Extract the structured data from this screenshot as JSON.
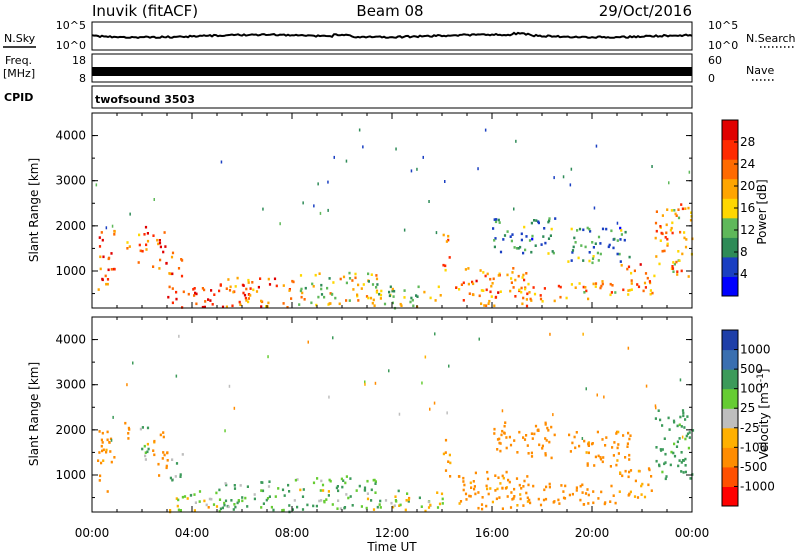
{
  "header": {
    "station": "Inuvik (fitACF)",
    "beam": "Beam 08",
    "date": "29/Oct/2016"
  },
  "top_panels": {
    "nsky_label": "N.Sky",
    "nsky_ticks": [
      "10^5",
      "10^0"
    ],
    "nsearch_label": "N.Search",
    "nsearch_ticks": [
      "10^5",
      "10^0"
    ],
    "freq_label_1": "Freq.",
    "freq_label_2": "[MHz]",
    "freq_ticks": [
      "18",
      "8"
    ],
    "nave_label": "Nave",
    "nave_ticks": [
      "60",
      "0"
    ],
    "cpid_label": "CPID",
    "cpid_text": "twofsound 3503"
  },
  "colors": {
    "power_scale": [
      "#0000ff",
      "#1a3fc2",
      "#2e8b57",
      "#5fb85a",
      "#ffd700",
      "#ffa500",
      "#ff6a00",
      "#ff2a00",
      "#e00000"
    ],
    "velocity_scale": [
      "#ff0000",
      "#ff5000",
      "#ff8c00",
      "#ffb000",
      "#bebebe",
      "#66cc33",
      "#3c9a5a",
      "#3a6fb0",
      "#1f3fa8"
    ]
  },
  "chart_data": [
    {
      "type": "heatmap",
      "name": "power",
      "ylabel": "Slant Range [km]",
      "yticks": [
        "4000",
        "3000",
        "2000",
        "1000"
      ],
      "ylim": [
        180,
        4500
      ],
      "xlim": [
        0,
        24
      ],
      "colorbar_label": "Power [dB]",
      "colorbar_ticks": [
        "28",
        "24",
        "20",
        "16",
        "12",
        "8",
        "4"
      ],
      "colorbar_range": [
        0,
        32
      ],
      "blobs": [
        {
          "t0": 0.2,
          "t1": 0.9,
          "r0": 600,
          "r1": 2000,
          "v": 26
        },
        {
          "t0": 1.2,
          "t1": 1.5,
          "r0": 1500,
          "r1": 1900,
          "v": 20
        },
        {
          "t0": 1.8,
          "t1": 2.3,
          "r0": 1200,
          "r1": 2100,
          "v": 24
        },
        {
          "t0": 2.4,
          "t1": 3.0,
          "r0": 1000,
          "r1": 1900,
          "v": 26
        },
        {
          "t0": 3.0,
          "t1": 3.6,
          "r0": 900,
          "r1": 1500,
          "v": 24
        },
        {
          "t0": 3.0,
          "t1": 5.0,
          "r0": 200,
          "r1": 700,
          "v": 28
        },
        {
          "t0": 5.0,
          "t1": 8.0,
          "r0": 200,
          "r1": 900,
          "v": 24
        },
        {
          "t0": 8.0,
          "t1": 11.5,
          "r0": 250,
          "r1": 1000,
          "v": 16
        },
        {
          "t0": 11.5,
          "t1": 14.0,
          "r0": 200,
          "r1": 700,
          "v": 14
        },
        {
          "t0": 14.0,
          "t1": 14.3,
          "r0": 1000,
          "r1": 2000,
          "v": 22
        },
        {
          "t0": 14.5,
          "t1": 17.5,
          "r0": 250,
          "r1": 1100,
          "v": 22
        },
        {
          "t0": 16.0,
          "t1": 18.5,
          "r0": 1400,
          "r1": 2200,
          "v": 8
        },
        {
          "t0": 17.0,
          "t1": 19.0,
          "r0": 350,
          "r1": 700,
          "v": 22
        },
        {
          "t0": 19.0,
          "t1": 21.0,
          "r0": 400,
          "r1": 800,
          "v": 20
        },
        {
          "t0": 19.0,
          "t1": 21.5,
          "r0": 1200,
          "r1": 2000,
          "v": 10
        },
        {
          "t0": 21.0,
          "t1": 22.5,
          "r0": 500,
          "r1": 1200,
          "v": 22
        },
        {
          "t0": 22.5,
          "t1": 24.0,
          "r0": 900,
          "r1": 2500,
          "v": 20
        }
      ]
    },
    {
      "type": "heatmap",
      "name": "velocity",
      "ylabel": "Slant Range [km]",
      "yticks": [
        "4000",
        "3000",
        "2000",
        "1000"
      ],
      "ylim": [
        180,
        4500
      ],
      "xlim": [
        0,
        24
      ],
      "xticks": [
        "00:00",
        "04:00",
        "08:00",
        "12:00",
        "16:00",
        "20:00",
        "00:00"
      ],
      "xlabel": "Time UT",
      "colorbar_label": "Velocity [m s^-1]",
      "colorbar_ticks": [
        "1000",
        "500",
        "100",
        "25",
        "-25",
        "-100",
        "-500",
        "-1000"
      ],
      "blobs": [
        {
          "t0": 0.2,
          "t1": 0.9,
          "r0": 600,
          "r1": 2000,
          "v": -200
        },
        {
          "t0": 1.2,
          "t1": 1.5,
          "r0": 1500,
          "r1": 2200,
          "v": -300
        },
        {
          "t0": 1.8,
          "t1": 2.3,
          "r0": 1200,
          "r1": 2100,
          "v": 80
        },
        {
          "t0": 2.4,
          "t1": 3.0,
          "r0": 1000,
          "r1": 2100,
          "v": -150
        },
        {
          "t0": 3.0,
          "t1": 3.6,
          "r0": 900,
          "r1": 1500,
          "v": 60
        },
        {
          "t0": 3.0,
          "t1": 5.0,
          "r0": 200,
          "r1": 700,
          "v": 10
        },
        {
          "t0": 5.0,
          "t1": 8.0,
          "r0": 200,
          "r1": 900,
          "v": 120
        },
        {
          "t0": 8.0,
          "t1": 11.5,
          "r0": 250,
          "r1": 1000,
          "v": 80
        },
        {
          "t0": 11.5,
          "t1": 14.0,
          "r0": 200,
          "r1": 700,
          "v": 5
        },
        {
          "t0": 14.0,
          "t1": 14.3,
          "r0": 1000,
          "r1": 2000,
          "v": -120
        },
        {
          "t0": 14.5,
          "t1": 17.5,
          "r0": 250,
          "r1": 1100,
          "v": -180
        },
        {
          "t0": 16.0,
          "t1": 18.5,
          "r0": 1400,
          "r1": 2200,
          "v": -300
        },
        {
          "t0": 17.0,
          "t1": 21.0,
          "r0": 350,
          "r1": 850,
          "v": -250
        },
        {
          "t0": 19.0,
          "t1": 21.5,
          "r0": 1200,
          "r1": 2000,
          "v": -200
        },
        {
          "t0": 21.0,
          "t1": 22.5,
          "r0": 500,
          "r1": 1200,
          "v": -150
        },
        {
          "t0": 22.5,
          "t1": 24.0,
          "r0": 900,
          "r1": 2500,
          "v": 200
        }
      ]
    }
  ]
}
